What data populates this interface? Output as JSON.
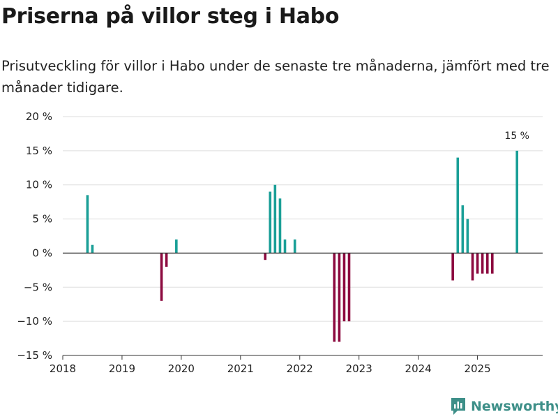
{
  "title": "Priserna på villor steg i Habo",
  "subtitle": "Prisutveckling för villor i Habo under de senaste tre månaderna, jämfört med tre månader tidigare.",
  "brand": "Newsworthy",
  "colors": {
    "positive": "#1a9f97",
    "negative": "#8c0a3f",
    "grid": "#dddddd",
    "zero": "#333333",
    "brand": "#3d8f88"
  },
  "chart_data": {
    "type": "bar",
    "title": "Priserna på villor steg i Habo",
    "xlabel": "",
    "ylabel": "",
    "ylim": [
      -15,
      20
    ],
    "xlim": [
      2018.0,
      2026.1
    ],
    "y_ticks": [
      -15,
      -10,
      -5,
      0,
      5,
      10,
      15,
      20
    ],
    "y_tick_labels": [
      "−15 %",
      "−10 %",
      "−5 %",
      "0 %",
      "5 %",
      "10 %",
      "15 %",
      "20 %"
    ],
    "x_ticks": [
      2018,
      2019,
      2020,
      2021,
      2022,
      2023,
      2024,
      2025
    ],
    "x_tick_labels": [
      "2018",
      "2019",
      "2020",
      "2021",
      "2022",
      "2023",
      "2024",
      "2025"
    ],
    "grid": true,
    "annotation": {
      "text": "15 %",
      "x": 2025.667,
      "y": 15
    },
    "series": [
      {
        "name": "Prisutveckling",
        "points": [
          {
            "x": 2018.417,
            "y": 8.5
          },
          {
            "x": 2018.5,
            "y": 1.2
          },
          {
            "x": 2019.667,
            "y": -7
          },
          {
            "x": 2019.75,
            "y": -2
          },
          {
            "x": 2019.917,
            "y": 2
          },
          {
            "x": 2021.417,
            "y": -1
          },
          {
            "x": 2021.5,
            "y": 9
          },
          {
            "x": 2021.583,
            "y": 10
          },
          {
            "x": 2021.667,
            "y": 8
          },
          {
            "x": 2021.75,
            "y": 2
          },
          {
            "x": 2021.917,
            "y": 2
          },
          {
            "x": 2022.583,
            "y": -13
          },
          {
            "x": 2022.667,
            "y": -13
          },
          {
            "x": 2022.75,
            "y": -10
          },
          {
            "x": 2022.833,
            "y": -10
          },
          {
            "x": 2024.583,
            "y": -4
          },
          {
            "x": 2024.667,
            "y": 14
          },
          {
            "x": 2024.75,
            "y": 7
          },
          {
            "x": 2024.833,
            "y": 5
          },
          {
            "x": 2024.917,
            "y": -4
          },
          {
            "x": 2025.0,
            "y": -3
          },
          {
            "x": 2025.083,
            "y": -3
          },
          {
            "x": 2025.167,
            "y": -3
          },
          {
            "x": 2025.25,
            "y": -3
          },
          {
            "x": 2025.667,
            "y": 15
          }
        ]
      }
    ]
  }
}
